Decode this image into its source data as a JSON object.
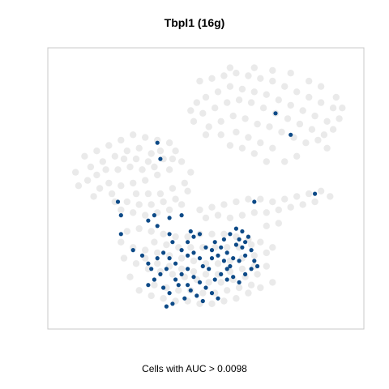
{
  "chart_data": {
    "type": "scatter",
    "title": "Tbpl1 (16g)",
    "caption": "Cells with AUC > 0.0098",
    "xlabel": "",
    "ylabel": "",
    "grid": false,
    "legend": "none",
    "xlim": [
      0,
      100
    ],
    "ylim": [
      0,
      100
    ],
    "colors": {
      "background_cells": "#d9d9d9",
      "highlighted_cells": "#0d4a87",
      "frame": "#c8c8c8"
    },
    "series": [
      {
        "name": "",
        "color": "#d9d9d9",
        "points": [
          [
            48,
            90
          ],
          [
            52,
            91
          ],
          [
            56,
            92
          ],
          [
            60,
            93
          ],
          [
            64,
            92
          ],
          [
            68,
            91
          ],
          [
            72,
            90
          ],
          [
            76,
            88
          ],
          [
            80,
            86
          ],
          [
            84,
            84
          ],
          [
            88,
            82
          ],
          [
            92,
            80
          ],
          [
            94,
            76
          ],
          [
            90,
            75
          ],
          [
            86,
            77
          ],
          [
            82,
            79
          ],
          [
            78,
            81
          ],
          [
            74,
            83
          ],
          [
            70,
            85
          ],
          [
            66,
            86
          ],
          [
            62,
            87
          ],
          [
            58,
            88
          ],
          [
            54,
            86
          ],
          [
            50,
            84
          ],
          [
            47,
            82
          ],
          [
            45,
            79
          ],
          [
            49,
            78
          ],
          [
            53,
            80
          ],
          [
            57,
            82
          ],
          [
            61,
            83
          ],
          [
            65,
            82
          ],
          [
            69,
            80
          ],
          [
            73,
            78
          ],
          [
            77,
            76
          ],
          [
            81,
            74
          ],
          [
            85,
            72
          ],
          [
            89,
            70
          ],
          [
            92,
            72
          ],
          [
            87,
            68
          ],
          [
            83,
            67
          ],
          [
            79,
            69
          ],
          [
            75,
            71
          ],
          [
            71,
            73
          ],
          [
            67,
            74
          ],
          [
            63,
            76
          ],
          [
            59,
            77
          ],
          [
            55,
            75
          ],
          [
            51,
            73
          ],
          [
            55,
            70
          ],
          [
            60,
            71
          ],
          [
            64,
            69
          ],
          [
            68,
            67
          ],
          [
            72,
            65
          ],
          [
            66,
            63
          ],
          [
            62,
            65
          ],
          [
            58,
            66
          ],
          [
            50,
            70
          ],
          [
            46,
            75
          ],
          [
            88,
            88
          ],
          [
            84,
            90
          ],
          [
            78,
            93
          ],
          [
            72,
            94
          ],
          [
            66,
            95
          ],
          [
            58,
            95
          ],
          [
            93,
            84
          ],
          [
            95,
            80
          ],
          [
            80,
            62
          ],
          [
            76,
            60
          ],
          [
            70,
            60
          ],
          [
            90,
            65
          ],
          [
            10,
            62
          ],
          [
            14,
            64
          ],
          [
            18,
            66
          ],
          [
            22,
            68
          ],
          [
            26,
            70
          ],
          [
            30,
            69
          ],
          [
            34,
            68
          ],
          [
            38,
            67
          ],
          [
            40,
            64
          ],
          [
            42,
            60
          ],
          [
            38,
            57
          ],
          [
            34,
            55
          ],
          [
            30,
            53
          ],
          [
            26,
            52
          ],
          [
            22,
            51
          ],
          [
            18,
            52
          ],
          [
            14,
            55
          ],
          [
            12,
            58
          ],
          [
            16,
            60
          ],
          [
            20,
            62
          ],
          [
            24,
            64
          ],
          [
            28,
            65
          ],
          [
            32,
            63
          ],
          [
            36,
            61
          ],
          [
            33,
            58
          ],
          [
            29,
            57
          ],
          [
            25,
            58
          ],
          [
            21,
            57
          ],
          [
            17,
            57
          ],
          [
            23,
            61
          ],
          [
            27,
            61
          ],
          [
            31,
            60
          ],
          [
            35,
            64
          ],
          [
            39,
            61
          ],
          [
            11,
            53
          ],
          [
            15,
            50
          ],
          [
            13,
            47
          ],
          [
            19,
            48
          ],
          [
            7,
            56
          ],
          [
            8,
            51
          ],
          [
            27,
            48
          ],
          [
            31,
            48
          ],
          [
            35,
            48
          ],
          [
            39,
            50
          ],
          [
            43,
            52
          ],
          [
            45,
            56
          ],
          [
            44,
            49
          ],
          [
            40,
            46
          ],
          [
            36,
            45
          ],
          [
            32,
            44
          ],
          [
            28,
            44
          ],
          [
            24,
            45
          ],
          [
            20,
            45
          ],
          [
            22,
            42
          ],
          [
            26,
            41
          ],
          [
            30,
            40
          ],
          [
            34,
            41
          ],
          [
            38,
            42
          ],
          [
            42,
            44
          ],
          [
            48,
            42
          ],
          [
            52,
            43
          ],
          [
            56,
            44
          ],
          [
            60,
            45
          ],
          [
            64,
            46
          ],
          [
            68,
            46
          ],
          [
            72,
            45
          ],
          [
            76,
            46
          ],
          [
            80,
            47
          ],
          [
            84,
            48
          ],
          [
            88,
            49
          ],
          [
            91,
            47
          ],
          [
            86,
            45
          ],
          [
            82,
            44
          ],
          [
            78,
            43
          ],
          [
            74,
            42
          ],
          [
            70,
            41
          ],
          [
            66,
            41
          ],
          [
            62,
            40
          ],
          [
            58,
            39
          ],
          [
            54,
            40
          ],
          [
            50,
            39
          ],
          [
            74,
            37
          ],
          [
            70,
            36
          ],
          [
            22,
            30
          ],
          [
            26,
            28
          ],
          [
            30,
            27
          ],
          [
            34,
            26
          ],
          [
            38,
            25
          ],
          [
            42,
            24
          ],
          [
            46,
            23
          ],
          [
            50,
            22
          ],
          [
            54,
            22
          ],
          [
            58,
            23
          ],
          [
            62,
            24
          ],
          [
            66,
            25
          ],
          [
            70,
            26
          ],
          [
            72,
            28
          ],
          [
            68,
            30
          ],
          [
            64,
            31
          ],
          [
            60,
            32
          ],
          [
            56,
            33
          ],
          [
            52,
            33
          ],
          [
            48,
            33
          ],
          [
            44,
            32
          ],
          [
            40,
            32
          ],
          [
            36,
            33
          ],
          [
            32,
            34
          ],
          [
            28,
            35
          ],
          [
            24,
            34
          ],
          [
            27,
            22
          ],
          [
            31,
            20
          ],
          [
            35,
            19
          ],
          [
            39,
            18
          ],
          [
            43,
            17
          ],
          [
            47,
            16
          ],
          [
            51,
            15
          ],
          [
            55,
            15
          ],
          [
            59,
            16
          ],
          [
            63,
            17
          ],
          [
            67,
            18
          ],
          [
            70,
            21
          ],
          [
            66,
            21
          ],
          [
            62,
            20
          ],
          [
            58,
            19
          ],
          [
            54,
            18
          ],
          [
            50,
            18
          ],
          [
            46,
            19
          ],
          [
            42,
            20
          ],
          [
            38,
            21
          ],
          [
            34,
            22
          ],
          [
            30,
            24
          ],
          [
            28,
            12
          ],
          [
            32,
            10
          ],
          [
            36,
            9
          ],
          [
            40,
            8
          ],
          [
            44,
            8
          ],
          [
            48,
            7
          ],
          [
            52,
            7
          ],
          [
            56,
            8
          ],
          [
            60,
            9
          ],
          [
            64,
            11
          ],
          [
            68,
            13
          ],
          [
            72,
            15
          ],
          [
            33,
            14
          ],
          [
            37,
            13
          ],
          [
            41,
            12
          ],
          [
            45,
            12
          ],
          [
            49,
            11
          ],
          [
            53,
            11
          ],
          [
            57,
            12
          ],
          [
            61,
            13
          ],
          [
            65,
            14
          ],
          [
            25,
            17
          ],
          [
            23,
            24
          ],
          [
            45,
            28
          ],
          [
            49,
            28
          ],
          [
            53,
            28
          ],
          [
            57,
            28
          ],
          [
            61,
            28
          ],
          [
            65,
            29
          ],
          [
            41,
            28
          ],
          [
            37,
            29
          ],
          [
            33,
            30
          ]
        ]
      },
      {
        "name": "",
        "color": "#0d4a87",
        "points": [
          [
            35,
            61
          ],
          [
            34,
            67
          ],
          [
            73,
            78
          ],
          [
            78,
            70
          ],
          [
            86,
            48
          ],
          [
            66,
            45
          ],
          [
            21,
            45
          ],
          [
            22,
            40
          ],
          [
            22,
            33
          ],
          [
            33,
            40
          ],
          [
            38,
            39
          ],
          [
            42,
            40
          ],
          [
            34,
            36
          ],
          [
            38,
            33
          ],
          [
            39,
            30
          ],
          [
            31,
            38
          ],
          [
            44,
            30
          ],
          [
            46,
            32
          ],
          [
            45,
            34
          ],
          [
            48,
            33
          ],
          [
            53,
            30
          ],
          [
            55,
            28
          ],
          [
            56,
            31
          ],
          [
            58,
            33
          ],
          [
            60,
            35
          ],
          [
            62,
            34
          ],
          [
            64,
            32
          ],
          [
            57,
            26
          ],
          [
            59,
            24
          ],
          [
            61,
            23
          ],
          [
            63,
            25
          ],
          [
            65,
            27
          ],
          [
            66,
            23
          ],
          [
            67,
            21
          ],
          [
            60,
            29
          ],
          [
            61,
            31
          ],
          [
            50,
            28
          ],
          [
            52,
            27
          ],
          [
            54,
            25
          ],
          [
            56,
            23
          ],
          [
            58,
            21
          ],
          [
            48,
            24
          ],
          [
            46,
            26
          ],
          [
            44,
            25
          ],
          [
            42,
            27
          ],
          [
            40,
            22
          ],
          [
            37,
            20
          ],
          [
            35,
            18
          ],
          [
            33,
            16
          ],
          [
            31,
            14
          ],
          [
            36,
            13
          ],
          [
            38,
            11
          ],
          [
            40,
            16
          ],
          [
            42,
            18
          ],
          [
            44,
            20
          ],
          [
            46,
            17
          ],
          [
            48,
            15
          ],
          [
            50,
            13
          ],
          [
            52,
            11
          ],
          [
            54,
            9
          ],
          [
            47,
            10
          ],
          [
            49,
            8
          ],
          [
            43,
            9
          ],
          [
            45,
            12
          ],
          [
            41,
            14
          ],
          [
            39,
            7
          ],
          [
            37,
            6
          ],
          [
            53,
            16
          ],
          [
            55,
            18
          ],
          [
            57,
            20
          ],
          [
            59,
            17
          ],
          [
            61,
            15
          ],
          [
            63,
            18
          ],
          [
            65,
            20
          ],
          [
            51,
            20
          ],
          [
            26,
            27
          ],
          [
            29,
            25
          ],
          [
            31,
            22
          ],
          [
            34,
            24
          ],
          [
            36,
            26
          ],
          [
            38,
            24
          ],
          [
            49,
            21
          ],
          [
            52,
            24
          ],
          [
            62,
            28
          ],
          [
            63,
            30
          ],
          [
            57,
            16
          ],
          [
            44,
            14
          ],
          [
            32,
            20
          ]
        ]
      }
    ]
  }
}
